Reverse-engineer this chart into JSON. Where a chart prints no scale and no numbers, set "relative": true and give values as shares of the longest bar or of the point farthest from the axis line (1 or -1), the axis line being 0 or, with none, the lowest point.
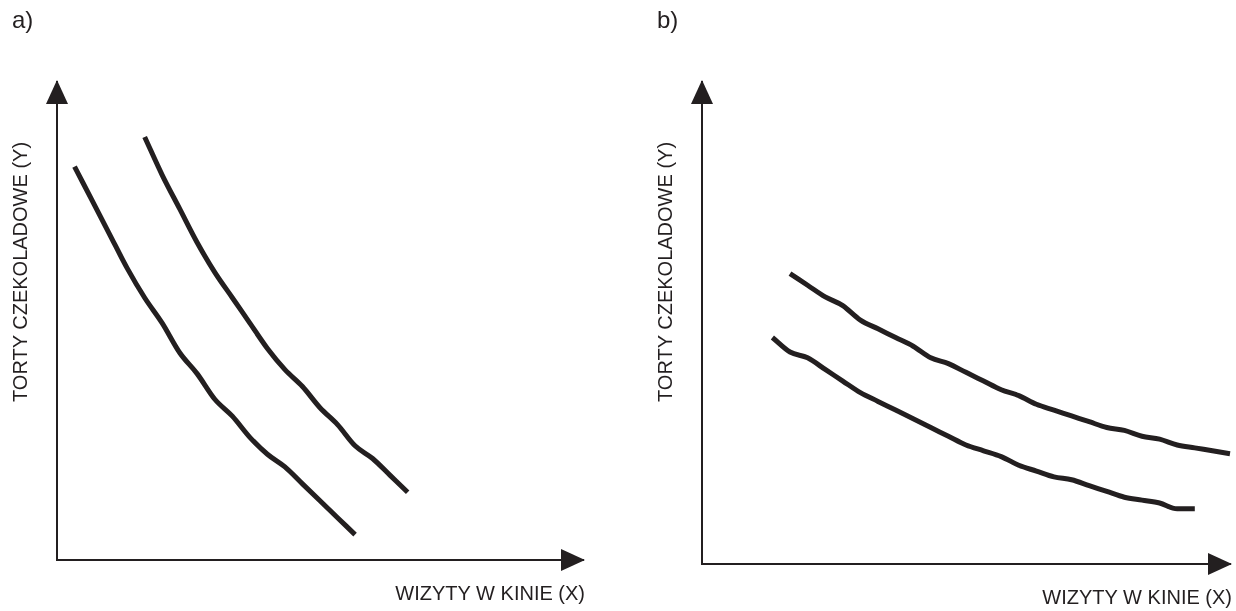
{
  "chart_data": [
    {
      "type": "line",
      "title": "a)",
      "xlabel": "WIZYTY W KINIE (X)",
      "ylabel": "TORTY CZEKOLADOWE (Y)",
      "relative": true,
      "categories": [
        null,
        null,
        null,
        null,
        null,
        null,
        null,
        null,
        null,
        null,
        null,
        null,
        null,
        null,
        null,
        null,
        null,
        null,
        null,
        null,
        null,
        null,
        null,
        null,
        null,
        null,
        null,
        null,
        null,
        null,
        null
      ],
      "series": [
        {
          "color": "#231f20",
          "values": [
            null,
            0.93,
            0.85,
            0.77,
            0.69,
            0.62,
            0.56,
            0.49,
            0.44,
            0.38,
            0.34,
            0.29,
            0.25,
            0.22,
            0.18,
            0.14,
            0.1,
            0.06,
            null,
            null,
            null,
            null,
            null,
            null,
            null,
            null,
            null,
            null,
            null,
            null,
            null
          ]
        },
        {
          "color": "#231f20",
          "values": [
            null,
            null,
            null,
            null,
            null,
            1,
            0.91,
            0.83,
            0.75,
            0.68,
            0.62,
            0.56,
            0.5,
            0.45,
            0.41,
            0.36,
            0.32,
            0.27,
            0.24,
            0.2,
            0.16,
            null,
            null,
            null,
            null,
            null,
            null,
            null,
            null,
            null,
            null
          ]
        }
      ]
    },
    {
      "type": "line",
      "title": "b)",
      "xlabel": "WIZYTY W KINIE (X)",
      "ylabel": "TORTY CZEKOLADOWE (Y)",
      "relative": true,
      "categories": [
        null,
        null,
        null,
        null,
        null,
        null,
        null,
        null,
        null,
        null,
        null,
        null,
        null,
        null,
        null,
        null,
        null,
        null,
        null,
        null,
        null,
        null,
        null,
        null,
        null,
        null,
        null,
        null,
        null,
        null,
        null
      ],
      "series": [
        {
          "color": "#231f20",
          "values": [
            null,
            null,
            null,
            null,
            0.78,
            0.73,
            0.71,
            0.67,
            0.63,
            0.59,
            0.56,
            0.53,
            0.5,
            0.47,
            0.44,
            0.41,
            0.39,
            0.37,
            0.34,
            0.32,
            0.3,
            0.29,
            0.27,
            0.25,
            0.23,
            0.22,
            0.21,
            0.19,
            0.19,
            null,
            null
          ]
        },
        {
          "color": "#231f20",
          "values": [
            null,
            null,
            null,
            null,
            null,
            1,
            0.96,
            0.92,
            0.89,
            0.84,
            0.81,
            0.78,
            0.75,
            0.71,
            0.69,
            0.66,
            0.63,
            0.6,
            0.58,
            0.55,
            0.53,
            0.51,
            0.49,
            0.47,
            0.46,
            0.44,
            0.43,
            0.41,
            0.4,
            0.39,
            0.38
          ]
        }
      ]
    }
  ]
}
